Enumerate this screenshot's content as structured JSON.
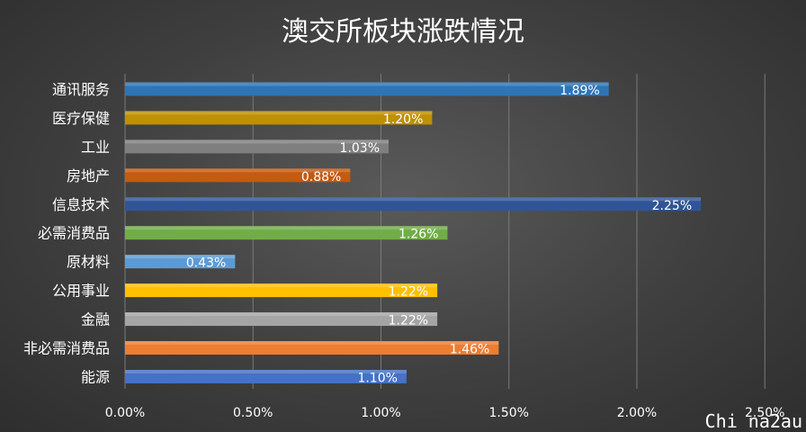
{
  "chart_data": {
    "type": "bar",
    "orientation": "horizontal",
    "title": "澳交所板块涨跌情况",
    "xlabel": "",
    "ylabel": "",
    "xlim": [
      0,
      2.5
    ],
    "grid": true,
    "legend": "none",
    "categories": [
      "通讯服务",
      "医疗保健",
      "工业",
      "房地产",
      "信息技术",
      "必需消费品",
      "原材料",
      "公用事业",
      "金融",
      "非必需消费品",
      "能源"
    ],
    "values": [
      1.89,
      1.2,
      1.03,
      0.88,
      2.25,
      1.26,
      0.43,
      1.22,
      1.22,
      1.46,
      1.1
    ],
    "data_labels": [
      "1.89%",
      "1.20%",
      "1.03%",
      "0.88%",
      "2.25%",
      "1.26%",
      "0.43%",
      "1.22%",
      "1.22%",
      "1.46%",
      "1.10%"
    ],
    "colors": [
      "#2e75b6",
      "#bf9000",
      "#7f7f7f",
      "#c55a11",
      "#2f5597",
      "#70ad47",
      "#5b9bd5",
      "#ffc000",
      "#a5a5a5",
      "#ed7d31",
      "#4472c4"
    ],
    "ticks": [
      0,
      0.5,
      1.0,
      1.5,
      2.0,
      2.5
    ],
    "tick_labels": [
      "0.00%",
      "0.50%",
      "1.00%",
      "1.50%",
      "2.00%",
      "2.50%"
    ]
  },
  "watermark": "Chi na2au"
}
